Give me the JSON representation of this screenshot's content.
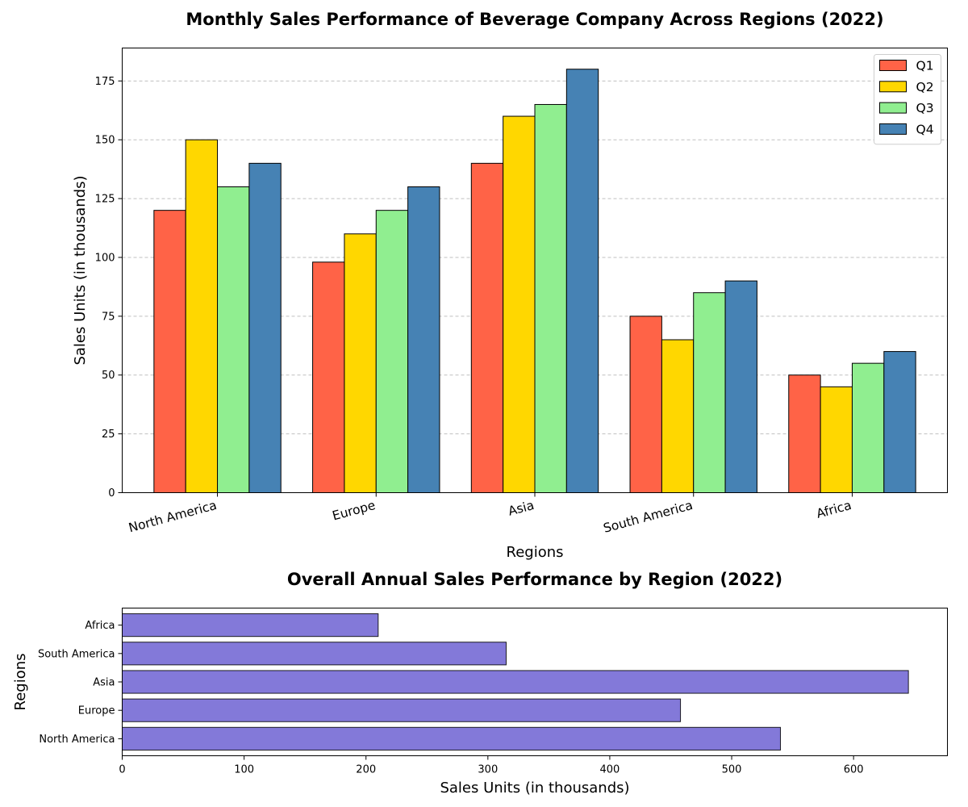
{
  "chart_data": [
    {
      "type": "bar",
      "title": "Monthly Sales Performance of Beverage Company Across Regions (2022)",
      "xlabel": "Regions",
      "ylabel": "Sales Units (in thousands)",
      "categories": [
        "North America",
        "Europe",
        "Asia",
        "South America",
        "Africa"
      ],
      "series": [
        {
          "name": "Q1",
          "color": "#ff6347",
          "values": [
            120,
            98,
            140,
            75,
            50
          ]
        },
        {
          "name": "Q2",
          "color": "#ffd700",
          "values": [
            150,
            110,
            160,
            65,
            45
          ]
        },
        {
          "name": "Q3",
          "color": "#90ee90",
          "values": [
            130,
            120,
            165,
            85,
            55
          ]
        },
        {
          "name": "Q4",
          "color": "#4682b4",
          "values": [
            140,
            130,
            180,
            90,
            60
          ]
        }
      ],
      "ylim": [
        0,
        189
      ],
      "yticks": [
        0,
        25,
        50,
        75,
        100,
        125,
        150,
        175
      ],
      "grid": "y-dashed",
      "legend": "top-right"
    },
    {
      "type": "bar",
      "orientation": "horizontal",
      "title": "Overall Annual Sales Performance by Region (2022)",
      "xlabel": "Sales Units (in thousands)",
      "ylabel": "Regions",
      "categories": [
        "North America",
        "Europe",
        "Asia",
        "South America",
        "Africa"
      ],
      "values": [
        540,
        458,
        645,
        315,
        210
      ],
      "color": "#8379d9",
      "xlim": [
        0,
        677
      ],
      "xticks": [
        0,
        100,
        200,
        300,
        400,
        500,
        600
      ]
    }
  ]
}
